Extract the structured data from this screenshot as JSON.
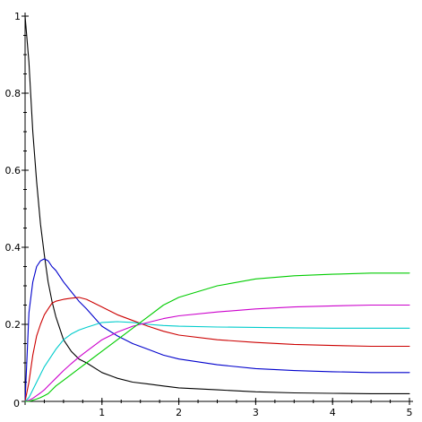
{
  "chart_data": {
    "type": "line",
    "title": "",
    "xlabel": "",
    "ylabel": "",
    "xlim": [
      0,
      5
    ],
    "ylim": [
      0,
      1
    ],
    "grid": false,
    "legend": "none",
    "x_ticks": [
      0,
      1,
      2,
      3,
      4,
      5
    ],
    "y_ticks": [
      0,
      0.2,
      0.4,
      0.6,
      0.8,
      1
    ],
    "x_tick_labels": [
      "0",
      "1",
      "2",
      "3",
      "4",
      "5"
    ],
    "y_tick_labels": [
      "0",
      "0.2",
      "0.4",
      "0.6",
      "0.8",
      "1"
    ],
    "x": [
      0,
      0.05,
      0.1,
      0.15,
      0.2,
      0.25,
      0.3,
      0.35,
      0.4,
      0.5,
      0.6,
      0.7,
      0.8,
      1.0,
      1.2,
      1.4,
      1.6,
      1.8,
      2.0,
      2.5,
      3.0,
      3.5,
      4.0,
      4.5,
      5.0
    ],
    "series": [
      {
        "color": "#000000",
        "values": [
          1.0,
          0.88,
          0.7,
          0.57,
          0.46,
          0.38,
          0.31,
          0.26,
          0.22,
          0.16,
          0.13,
          0.11,
          0.1,
          0.075,
          0.06,
          0.05,
          0.045,
          0.04,
          0.035,
          0.03,
          0.025,
          0.022,
          0.021,
          0.02,
          0.02
        ]
      },
      {
        "color": "#0000cc",
        "values": [
          0.0,
          0.23,
          0.31,
          0.35,
          0.365,
          0.37,
          0.365,
          0.35,
          0.34,
          0.31,
          0.285,
          0.26,
          0.24,
          0.195,
          0.17,
          0.15,
          0.135,
          0.12,
          0.11,
          0.095,
          0.085,
          0.08,
          0.077,
          0.075,
          0.075
        ]
      },
      {
        "color": "#cc0000",
        "values": [
          0.0,
          0.05,
          0.12,
          0.17,
          0.2,
          0.225,
          0.24,
          0.255,
          0.26,
          0.265,
          0.268,
          0.27,
          0.265,
          0.245,
          0.225,
          0.21,
          0.195,
          0.182,
          0.172,
          0.16,
          0.153,
          0.148,
          0.145,
          0.143,
          0.143
        ]
      },
      {
        "color": "#00cccc",
        "values": [
          0.0,
          0.01,
          0.03,
          0.05,
          0.07,
          0.09,
          0.105,
          0.12,
          0.135,
          0.16,
          0.175,
          0.185,
          0.192,
          0.205,
          0.207,
          0.205,
          0.2,
          0.197,
          0.195,
          0.193,
          0.192,
          0.191,
          0.19,
          0.19,
          0.19
        ]
      },
      {
        "color": "#cc00cc",
        "values": [
          0.0,
          0.003,
          0.008,
          0.015,
          0.022,
          0.03,
          0.04,
          0.05,
          0.06,
          0.08,
          0.098,
          0.115,
          0.13,
          0.16,
          0.18,
          0.195,
          0.205,
          0.215,
          0.222,
          0.232,
          0.24,
          0.245,
          0.248,
          0.25,
          0.25
        ]
      },
      {
        "color": "#00cc00",
        "values": [
          0.0,
          0.0,
          0.003,
          0.006,
          0.01,
          0.015,
          0.02,
          0.03,
          0.04,
          0.055,
          0.07,
          0.085,
          0.1,
          0.13,
          0.16,
          0.19,
          0.22,
          0.25,
          0.27,
          0.3,
          0.318,
          0.326,
          0.33,
          0.333,
          0.333
        ]
      }
    ]
  }
}
